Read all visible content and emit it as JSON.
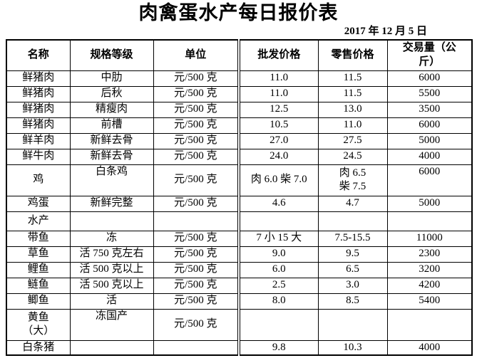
{
  "title": "肉禽蛋水产每日报价表",
  "date": "2017 年 12 月 5 日",
  "table": {
    "headers": [
      "名称",
      "规格等级",
      "单位",
      "批发价格",
      "零售价格",
      "交易量（公斤）"
    ],
    "rows": [
      {
        "name": "鲜猪肉",
        "spec": "中肋",
        "unit": "元/500 克",
        "wholesale": "11.0",
        "retail": "11.5",
        "volume": "6000"
      },
      {
        "name": "鲜猪肉",
        "spec": "后秋",
        "unit": "元/500 克",
        "wholesale": "11.0",
        "retail": "11.5",
        "volume": "5500"
      },
      {
        "name": "鲜猪肉",
        "spec": "精瘦肉",
        "unit": "元/500 克",
        "wholesale": "12.5",
        "retail": "13.0",
        "volume": "3500"
      },
      {
        "name": "鲜猪肉",
        "spec": "前槽",
        "unit": "元/500 克",
        "wholesale": "10.5",
        "retail": "11.0",
        "volume": "6000"
      },
      {
        "name": "鲜羊肉",
        "spec": "新鲜去骨",
        "unit": "元/500 克",
        "wholesale": "27.0",
        "retail": "27.5",
        "volume": "5000"
      },
      {
        "name": "鲜牛肉",
        "spec": "新鲜去骨",
        "unit": "元/500 克",
        "wholesale": "24.0",
        "retail": "24.5",
        "volume": "4000"
      },
      {
        "name": "鸡",
        "spec": "白条鸡",
        "unit": "元/500 克",
        "wholesale": "肉 6.0 柴 7.0",
        "retail": "肉 6.5\n柴 7.5",
        "volume": "6000"
      },
      {
        "name": "鸡蛋",
        "spec": "新鲜完整",
        "unit": "元/500 克",
        "wholesale": "4.6",
        "retail": "4.7",
        "volume": "5000"
      },
      {
        "name": "水产",
        "spec": "",
        "unit": "",
        "wholesale": "",
        "retail": "",
        "volume": ""
      },
      {
        "name": "带鱼",
        "spec": "冻",
        "unit": "元/500 克",
        "wholesale": "7 小 15 大",
        "retail": "7.5-15.5",
        "volume": "11000"
      },
      {
        "name": "草鱼",
        "spec": "活 750 克左右",
        "unit": "元/500 克",
        "wholesale": "9.0",
        "retail": "9.5",
        "volume": "2300"
      },
      {
        "name": "鲤鱼",
        "spec": "活 500 克以上",
        "unit": "元/500 克",
        "wholesale": "6.0",
        "retail": "6.5",
        "volume": "3200"
      },
      {
        "name": "鲢鱼",
        "spec": "活 500 克以上",
        "unit": "元/500 克",
        "wholesale": "2.5",
        "retail": "3.0",
        "volume": "4200"
      },
      {
        "name": "鲫鱼",
        "spec": "活",
        "unit": "元/500 克",
        "wholesale": "8.0",
        "retail": "8.5",
        "volume": "5400"
      },
      {
        "name": "黄鱼\n（大）",
        "spec": "冻国产",
        "unit": "元/500 克",
        "wholesale": "",
        "retail": "",
        "volume": ""
      },
      {
        "name": "白条猪",
        "spec": "",
        "unit": "",
        "wholesale": "9.8",
        "retail": "10.3",
        "volume": "4000"
      }
    ]
  }
}
